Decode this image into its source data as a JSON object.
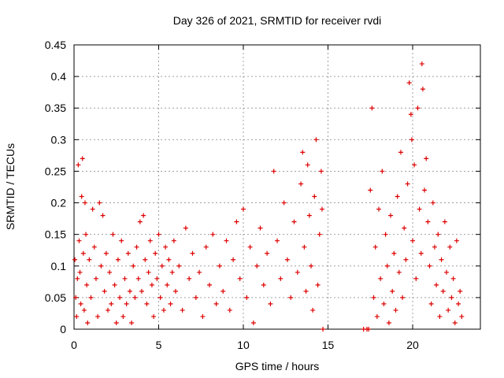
{
  "chart_data": {
    "type": "scatter",
    "title": "Day 326 of 2021, SRMTID for receiver rvdi",
    "xlabel": "GPS time / hours",
    "ylabel": "SRMTID / TECUs",
    "xlim": [
      0,
      24
    ],
    "ylim": [
      0,
      0.45
    ],
    "x_ticks": [
      "0",
      "5",
      "10",
      "15",
      "20"
    ],
    "y_ticks": [
      "0",
      "0.05",
      "0.1",
      "0.15",
      "0.2",
      "0.25",
      "0.3",
      "0.35",
      "0.4",
      "0.45"
    ],
    "grid": true,
    "series": [
      {
        "name": "SRMTID",
        "marker": "+",
        "color": "#dd0000",
        "points": [
          [
            0.05,
            0.11
          ],
          [
            0.1,
            0.05
          ],
          [
            0.15,
            0.02
          ],
          [
            0.2,
            0.08
          ],
          [
            0.25,
            0.26
          ],
          [
            0.3,
            0.14
          ],
          [
            0.35,
            0.09
          ],
          [
            0.4,
            0.04
          ],
          [
            0.45,
            0.21
          ],
          [
            0.5,
            0.27
          ],
          [
            0.55,
            0.12
          ],
          [
            0.6,
            0.03
          ],
          [
            0.65,
            0.2
          ],
          [
            0.7,
            0.15
          ],
          [
            0.75,
            0.07
          ],
          [
            0.8,
            0.01
          ],
          [
            0.9,
            0.11
          ],
          [
            1.0,
            0.05
          ],
          [
            1.1,
            0.19
          ],
          [
            1.2,
            0.13
          ],
          [
            1.3,
            0.08
          ],
          [
            1.4,
            0.02
          ],
          [
            1.5,
            0.2
          ],
          [
            1.6,
            0.1
          ],
          [
            1.7,
            0.18
          ],
          [
            1.8,
            0.06
          ],
          [
            1.9,
            0.12
          ],
          [
            2.0,
            0.03
          ],
          [
            2.1,
            0.09
          ],
          [
            2.2,
            0.04
          ],
          [
            2.3,
            0.15
          ],
          [
            2.4,
            0.07
          ],
          [
            2.5,
            0.01
          ],
          [
            2.6,
            0.11
          ],
          [
            2.7,
            0.05
          ],
          [
            2.8,
            0.14
          ],
          [
            2.9,
            0.02
          ],
          [
            3.0,
            0.08
          ],
          [
            3.1,
            0.04
          ],
          [
            3.2,
            0.12
          ],
          [
            3.3,
            0.06
          ],
          [
            3.4,
            0.01
          ],
          [
            3.5,
            0.1
          ],
          [
            3.6,
            0.05
          ],
          [
            3.7,
            0.13
          ],
          [
            3.8,
            0.08
          ],
          [
            3.9,
            0.17
          ],
          [
            4.0,
            0.06
          ],
          [
            4.1,
            0.18
          ],
          [
            4.2,
            0.11
          ],
          [
            4.3,
            0.04
          ],
          [
            4.4,
            0.09
          ],
          [
            4.5,
            0.14
          ],
          [
            4.6,
            0.07
          ],
          [
            4.7,
            0.02
          ],
          [
            4.8,
            0.12
          ],
          [
            4.9,
            0.08
          ],
          [
            5.0,
            0.15
          ],
          [
            5.1,
            0.05
          ],
          [
            5.2,
            0.1
          ],
          [
            5.3,
            0.03
          ],
          [
            5.4,
            0.13
          ],
          [
            5.5,
            0.07
          ],
          [
            5.6,
            0.11
          ],
          [
            5.7,
            0.04
          ],
          [
            5.8,
            0.09
          ],
          [
            5.9,
            0.14
          ],
          [
            6.0,
            0.06
          ],
          [
            6.2,
            0.1
          ],
          [
            6.4,
            0.03
          ],
          [
            6.6,
            0.16
          ],
          [
            6.8,
            0.08
          ],
          [
            7.0,
            0.12
          ],
          [
            7.2,
            0.05
          ],
          [
            7.4,
            0.09
          ],
          [
            7.6,
            0.02
          ],
          [
            7.8,
            0.13
          ],
          [
            8.0,
            0.07
          ],
          [
            8.2,
            0.15
          ],
          [
            8.4,
            0.04
          ],
          [
            8.6,
            0.1
          ],
          [
            8.8,
            0.06
          ],
          [
            9.0,
            0.14
          ],
          [
            9.2,
            0.03
          ],
          [
            9.4,
            0.11
          ],
          [
            9.6,
            0.17
          ],
          [
            9.8,
            0.08
          ],
          [
            10.0,
            0.19
          ],
          [
            10.2,
            0.05
          ],
          [
            10.4,
            0.13
          ],
          [
            10.6,
            0.01
          ],
          [
            10.8,
            0.1
          ],
          [
            11.0,
            0.16
          ],
          [
            11.2,
            0.07
          ],
          [
            11.4,
            0.12
          ],
          [
            11.6,
            0.04
          ],
          [
            11.8,
            0.25
          ],
          [
            12.0,
            0.14
          ],
          [
            12.2,
            0.08
          ],
          [
            12.4,
            0.2
          ],
          [
            12.6,
            0.11
          ],
          [
            12.8,
            0.05
          ],
          [
            13.0,
            0.17
          ],
          [
            13.2,
            0.09
          ],
          [
            13.4,
            0.23
          ],
          [
            13.5,
            0.28
          ],
          [
            13.6,
            0.13
          ],
          [
            13.7,
            0.06
          ],
          [
            13.8,
            0.26
          ],
          [
            13.9,
            0.18
          ],
          [
            14.0,
            0.1
          ],
          [
            14.1,
            0.03
          ],
          [
            14.2,
            0.21
          ],
          [
            14.3,
            0.3
          ],
          [
            14.4,
            0.07
          ],
          [
            14.5,
            0.15
          ],
          [
            14.6,
            0.25
          ],
          [
            14.65,
            0.19
          ],
          [
            14.7,
            0.0
          ],
          [
            17.1,
            0.0
          ],
          [
            17.3,
            0.0
          ],
          [
            17.4,
            0.0
          ],
          [
            17.5,
            0.22
          ],
          [
            17.6,
            0.35
          ],
          [
            17.7,
            0.05
          ],
          [
            17.8,
            0.13
          ],
          [
            17.9,
            0.02
          ],
          [
            18.0,
            0.19
          ],
          [
            18.1,
            0.08
          ],
          [
            18.2,
            0.25
          ],
          [
            18.3,
            0.04
          ],
          [
            18.4,
            0.15
          ],
          [
            18.5,
            0.1
          ],
          [
            18.6,
            0.01
          ],
          [
            18.7,
            0.18
          ],
          [
            18.8,
            0.06
          ],
          [
            18.9,
            0.12
          ],
          [
            19.0,
            0.03
          ],
          [
            19.1,
            0.21
          ],
          [
            19.2,
            0.09
          ],
          [
            19.3,
            0.28
          ],
          [
            19.4,
            0.05
          ],
          [
            19.5,
            0.16
          ],
          [
            19.6,
            0.11
          ],
          [
            19.7,
            0.23
          ],
          [
            19.8,
            0.39
          ],
          [
            19.9,
            0.34
          ],
          [
            19.95,
            0.3
          ],
          [
            20.0,
            0.14
          ],
          [
            20.1,
            0.26
          ],
          [
            20.2,
            0.08
          ],
          [
            20.3,
            0.35
          ],
          [
            20.4,
            0.19
          ],
          [
            20.5,
            0.12
          ],
          [
            20.55,
            0.42
          ],
          [
            20.6,
            0.38
          ],
          [
            20.7,
            0.22
          ],
          [
            20.8,
            0.27
          ],
          [
            20.9,
            0.17
          ],
          [
            21.0,
            0.1
          ],
          [
            21.1,
            0.04
          ],
          [
            21.2,
            0.2
          ],
          [
            21.3,
            0.13
          ],
          [
            21.4,
            0.07
          ],
          [
            21.5,
            0.15
          ],
          [
            21.6,
            0.02
          ],
          [
            21.7,
            0.11
          ],
          [
            21.8,
            0.06
          ],
          [
            21.9,
            0.17
          ],
          [
            22.0,
            0.09
          ],
          [
            22.1,
            0.03
          ],
          [
            22.2,
            0.13
          ],
          [
            22.3,
            0.05
          ],
          [
            22.4,
            0.08
          ],
          [
            22.5,
            0.01
          ],
          [
            22.6,
            0.14
          ],
          [
            22.7,
            0.04
          ],
          [
            22.8,
            0.06
          ],
          [
            22.9,
            0.02
          ]
        ]
      }
    ]
  }
}
